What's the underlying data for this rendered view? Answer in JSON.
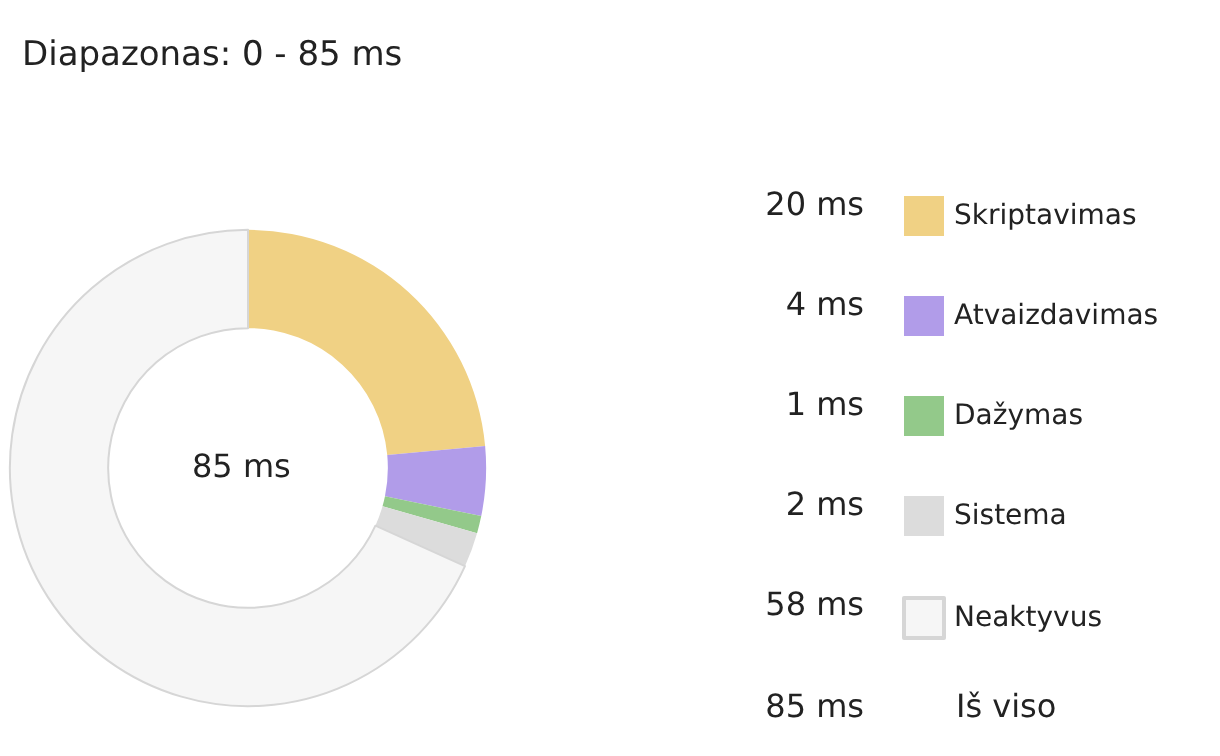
{
  "chart_data": {
    "type": "donut",
    "title": "Diapazonas: 0 - 85 ms",
    "categories": [
      "Skriptavimas",
      "Atvaizdavimas",
      "Dažymas",
      "Sistema",
      "Neaktyvus"
    ],
    "values": [
      20,
      4,
      1,
      2,
      58
    ],
    "colors": [
      "#f0d184",
      "#b19ce9",
      "#93c98a",
      "#dcdcdc",
      "#f6f6f6"
    ],
    "value_labels": [
      "20 ms",
      "4 ms",
      "1 ms",
      "2 ms",
      "58 ms"
    ],
    "annotations": [
      "85 ms",
      "85 ms",
      "Iš viso"
    ],
    "legend": "right"
  }
}
